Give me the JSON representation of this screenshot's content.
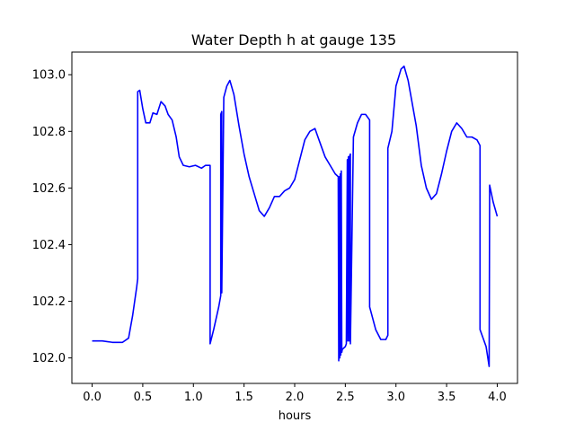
{
  "chart_data": {
    "type": "line",
    "title": "Water Depth h at gauge 135",
    "xlabel": "hours",
    "ylabel": "",
    "xlim": [
      -0.2,
      4.2
    ],
    "ylim": [
      101.91,
      103.08
    ],
    "xticks": [
      0.0,
      0.5,
      1.0,
      1.5,
      2.0,
      2.5,
      3.0,
      3.5,
      4.0
    ],
    "xtick_labels": [
      "0.0",
      "0.5",
      "1.0",
      "1.5",
      "2.0",
      "2.5",
      "3.0",
      "3.5",
      "4.0"
    ],
    "yticks": [
      102.0,
      102.2,
      102.4,
      102.6,
      102.8,
      103.0
    ],
    "ytick_labels": [
      "102.0",
      "102.2",
      "102.4",
      "102.6",
      "102.8",
      "103.0"
    ],
    "grid": false,
    "line_color": "#0000ff",
    "series": [
      {
        "x": [
          0.0,
          0.1,
          0.2,
          0.3,
          0.36,
          0.4,
          0.44,
          0.45,
          0.45,
          0.47,
          0.5,
          0.53,
          0.57,
          0.6,
          0.64,
          0.68,
          0.72,
          0.75,
          0.79,
          0.83,
          0.86,
          0.9,
          0.96,
          1.02,
          1.08,
          1.12,
          1.15,
          1.165,
          1.165,
          1.2,
          1.25,
          1.27,
          1.27,
          1.28,
          1.28,
          1.3,
          1.33,
          1.36,
          1.4,
          1.45,
          1.5,
          1.55,
          1.6,
          1.65,
          1.7,
          1.75,
          1.8,
          1.85,
          1.9,
          1.95,
          2.0,
          2.05,
          2.1,
          2.15,
          2.2,
          2.25,
          2.3,
          2.35,
          2.4,
          2.43,
          2.435,
          2.44,
          2.445,
          2.45,
          2.455,
          2.46,
          2.465,
          2.47,
          2.5,
          2.51,
          2.52,
          2.525,
          2.53,
          2.54,
          2.54,
          2.55,
          2.55,
          2.58,
          2.62,
          2.66,
          2.7,
          2.74,
          2.74,
          2.8,
          2.85,
          2.9,
          2.92,
          2.92,
          2.96,
          3.0,
          3.05,
          3.08,
          3.12,
          3.2,
          3.25,
          3.3,
          3.35,
          3.4,
          3.45,
          3.5,
          3.55,
          3.6,
          3.65,
          3.7,
          3.75,
          3.8,
          3.83,
          3.83,
          3.86,
          3.89,
          3.92,
          3.925,
          3.96,
          4.0
        ],
        "y": [
          102.06,
          102.06,
          102.055,
          102.055,
          102.07,
          102.15,
          102.25,
          102.28,
          102.94,
          102.945,
          102.88,
          102.83,
          102.83,
          102.865,
          102.86,
          102.905,
          102.89,
          102.86,
          102.84,
          102.78,
          102.71,
          102.68,
          102.675,
          102.68,
          102.67,
          102.68,
          102.68,
          102.68,
          102.05,
          102.1,
          102.18,
          102.22,
          102.86,
          102.87,
          102.23,
          102.92,
          102.96,
          102.98,
          102.93,
          102.82,
          102.72,
          102.64,
          102.58,
          102.52,
          102.5,
          102.53,
          102.57,
          102.57,
          102.59,
          102.6,
          102.63,
          102.7,
          102.77,
          102.8,
          102.81,
          102.76,
          102.71,
          102.68,
          102.65,
          102.64,
          101.99,
          102.64,
          102.0,
          102.65,
          102.01,
          102.66,
          102.02,
          102.03,
          102.04,
          102.05,
          102.7,
          102.06,
          102.71,
          102.06,
          102.71,
          102.72,
          102.05,
          102.78,
          102.83,
          102.86,
          102.86,
          102.84,
          102.18,
          102.1,
          102.065,
          102.065,
          102.08,
          102.74,
          102.8,
          102.96,
          103.02,
          103.03,
          102.98,
          102.82,
          102.68,
          102.6,
          102.56,
          102.58,
          102.65,
          102.73,
          102.8,
          102.83,
          102.81,
          102.78,
          102.78,
          102.77,
          102.75,
          102.1,
          102.07,
          102.04,
          101.97,
          102.61,
          102.55,
          102.5
        ]
      }
    ]
  }
}
